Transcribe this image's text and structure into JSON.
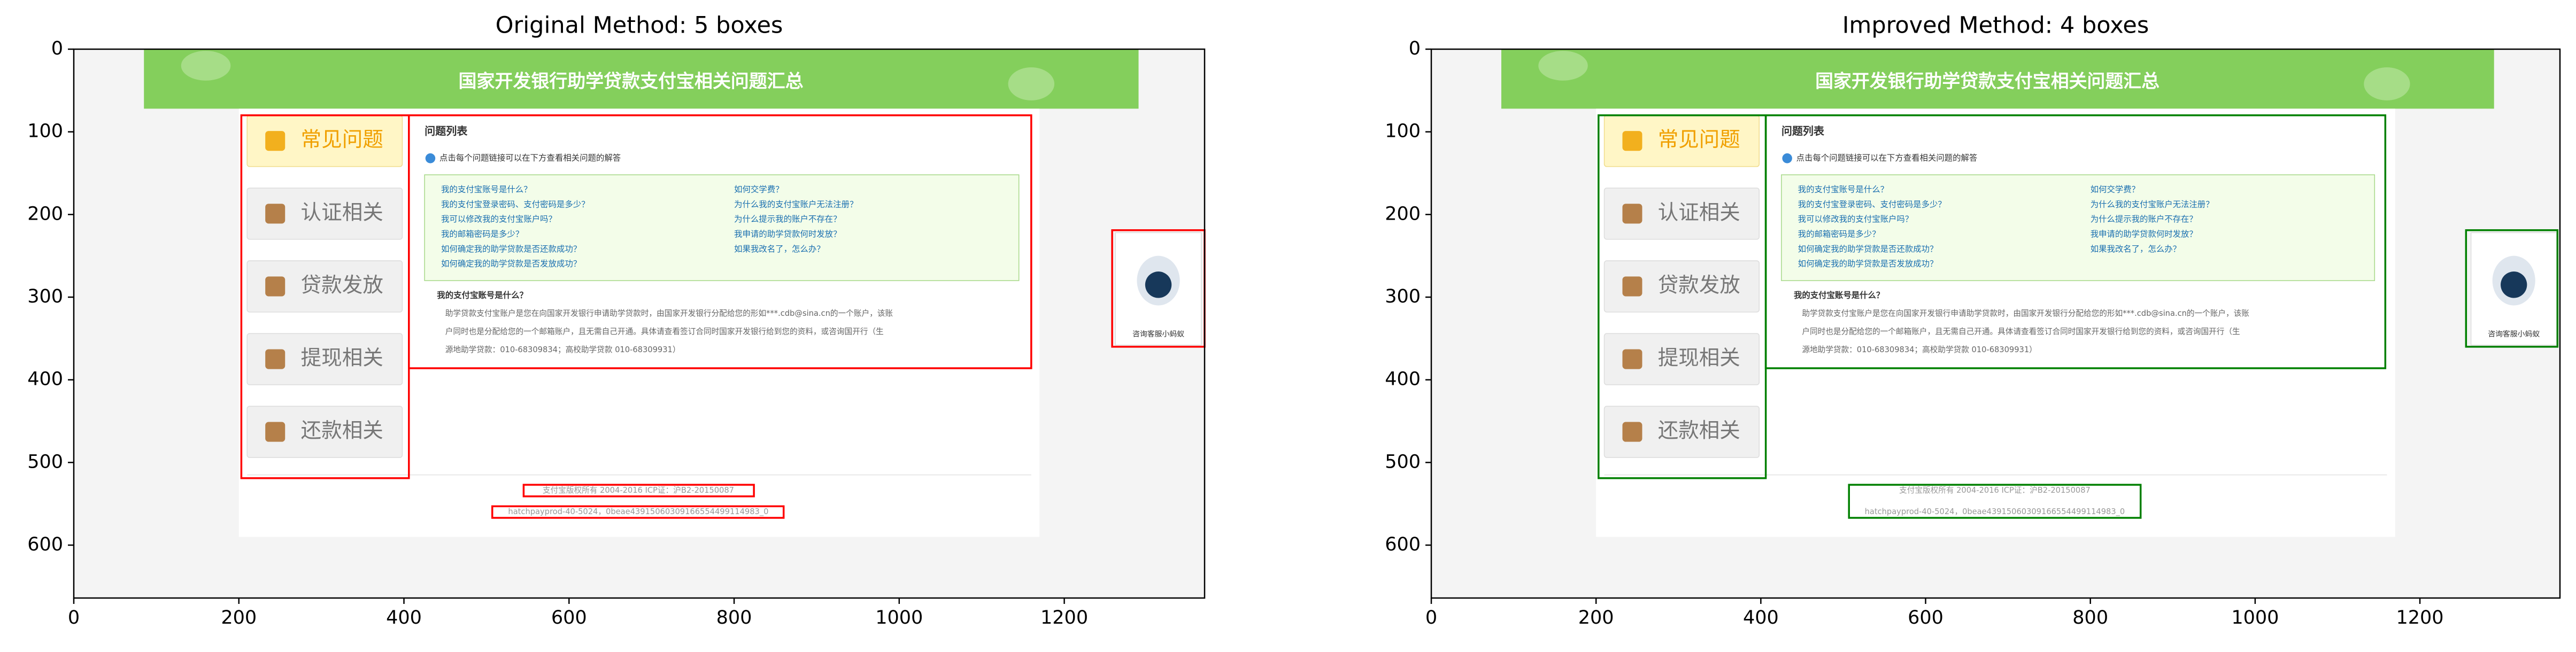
{
  "chart_data": [
    {
      "type": "image",
      "title": "Original Method: 5 boxes",
      "xlim": [
        0,
        1370
      ],
      "ylim": [
        664,
        0
      ],
      "xticks": [
        0,
        200,
        400,
        600,
        800,
        1000,
        1200
      ],
      "yticks": [
        0,
        100,
        200,
        300,
        400,
        500,
        600
      ],
      "color": "#ff0000",
      "boxes": [
        [
          203,
          80,
          406,
          519
        ],
        [
          406,
          80,
          1160,
          386
        ],
        [
          1258,
          219,
          1370,
          360
        ],
        [
          545,
          527,
          824,
          541
        ],
        [
          507,
          553,
          860,
          567
        ]
      ]
    },
    {
      "type": "image",
      "title": "Improved Method: 4 boxes",
      "xlim": [
        0,
        1370
      ],
      "ylim": [
        664,
        0
      ],
      "xticks": [
        0,
        200,
        400,
        600,
        800,
        1000,
        1200
      ],
      "yticks": [
        0,
        100,
        200,
        300,
        400,
        500,
        600
      ],
      "color": "#008000",
      "boxes": [
        [
          203,
          80,
          406,
          519
        ],
        [
          406,
          80,
          1158,
          386
        ],
        [
          1256,
          219,
          1367,
          360
        ],
        [
          507,
          527,
          861,
          567
        ]
      ]
    }
  ],
  "screenshot": {
    "header": "国家开发银行助学贷款支付宝相关问题汇总",
    "sidebar": [
      "常见问题",
      "认证相关",
      "贷款发放",
      "提现相关",
      "还款相关"
    ],
    "list_title": "问题列表",
    "hint": "点击每个问题链接可以在下方查看相关问题的解答",
    "questions_left": [
      "我的支付宝账号是什么？",
      "我的支付宝登录密码、支付密码是多少？",
      "我可以修改我的支付宝账户吗？",
      "我的邮箱密码是多少？",
      "如何确定我的助学贷款是否还款成功？",
      "如何确定我的助学贷款是否发放成功？"
    ],
    "questions_right": [
      "如何交学费？",
      "为什么我的支付宝账户无法注册？",
      "为什么提示我的账户不存在？",
      "我申请的助学贷款何时发放？",
      "如果我改名了，怎么办？"
    ],
    "answer_title": "我的支付宝账号是什么？",
    "answer_lines": [
      "助学贷款支付宝账户是您在向国家开发银行申请助学贷款时，由国家开发银行分配给您的形如***.cdb@sina.cn的一个账户，该账",
      "户同时也是分配给您的一个邮箱账户，且无需自己开通。具体请查看签订合同时国家开发银行给到您的资料，或咨询国开行（生",
      "源地助学贷款：010-68309834；高校助学贷款 010-68309931）"
    ],
    "robot_label": "咨询客服小蚂蚁",
    "footer": [
      "支付宝版权所有 2004-2016 ICP证：沪B2-20150087",
      "hatchpayprod-40-5024，0beae43915060309166554499114983_0"
    ]
  }
}
